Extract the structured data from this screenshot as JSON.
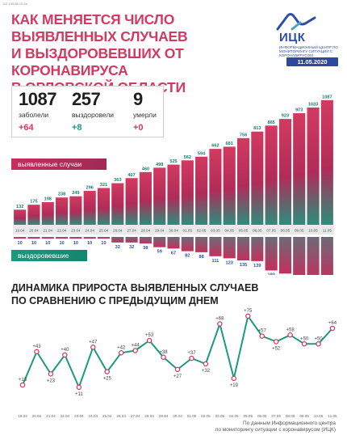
{
  "header": {
    "tiny_text": "112 149.88.12.2a",
    "title_lines": [
      "КАК МЕНЯЕТСЯ ЧИСЛО ВЫЯВЛЕННЫХ СЛУЧАЕВ",
      "И ВЫЗДОРОВЕВШИХ ОТ КОРОНАВИРУСА",
      "В ОРЛОВСКОЙ ОБЛАСТИ"
    ],
    "logo_name": "ИЦК",
    "logo_sub": "ИНФОРМАЦИОННЫЙ ЦЕНТР ПО МОНИТОРИНГУ СИТУАЦИИ С КОРОНАВИРУСОМ",
    "date": "11.05.2020"
  },
  "stats": [
    {
      "num": "1087",
      "label": "заболели",
      "delta": "+64",
      "tone": "red"
    },
    {
      "num": "257",
      "label": "выздоровели",
      "delta": "+8",
      "tone": "green"
    },
    {
      "num": "9",
      "label": "умерли",
      "delta": "+0",
      "tone": "red"
    }
  ],
  "chart_data": [
    {
      "type": "bar",
      "categories": [
        "19.04",
        "20.04",
        "21.04",
        "22.04",
        "23.04",
        "24.04",
        "25.04",
        "26.04",
        "27.04",
        "28.04",
        "29.04",
        "30.04",
        "01.05",
        "02.05",
        "03.05",
        "04.05",
        "05.05",
        "06.05",
        "07.05",
        "08.05",
        "09.05",
        "10.05",
        "11.05"
      ],
      "series": [
        {
          "name": "выявленные случаи",
          "values": [
            132,
            175,
            198,
            238,
            249,
            296,
            321,
            363,
            407,
            460,
            498,
            525,
            562,
            594,
            662,
            681,
            756,
            813,
            865,
            923,
            973,
            1023,
            1087
          ],
          "color": "#c52f5c"
        },
        {
          "name": "выздоровевшие",
          "values": [
            10,
            10,
            10,
            10,
            10,
            10,
            10,
            32,
            32,
            38,
            59,
            67,
            82,
            88,
            111,
            123,
            135,
            139,
            193,
            211,
            244,
            249,
            257
          ],
          "color": "#1a9a7e"
        }
      ],
      "labels": [
        "выявленные случаи",
        "выздоровевшие"
      ]
    },
    {
      "type": "line",
      "title": "ДИНАМИКА ПРИРОСТА ВЫЯВЛЕННЫХ СЛУЧАЕВ ПО СРАВНЕНИЮ С ПРЕДЫДУЩИМ ДНЕМ",
      "title_lines": [
        "ДИНАМИКА ПРИРОСТА ВЫЯВЛЕННЫХ СЛУЧАЕВ",
        "ПО СРАВНЕНИЮ С ПРЕДЫДУЩИМ ДНЕМ"
      ],
      "categories": [
        "19.04",
        "20.04",
        "21.04",
        "22.04",
        "23.04",
        "24.04",
        "25.04",
        "26.04",
        "27.04",
        "28.04",
        "29.04",
        "30.04",
        "01.05",
        "02.05",
        "03.05",
        "04.05",
        "05.05",
        "06.05",
        "07.05",
        "08.05",
        "09.05",
        "10.05",
        "11.05"
      ],
      "values": [
        13,
        43,
        23,
        40,
        11,
        47,
        25,
        42,
        44,
        53,
        38,
        27,
        37,
        32,
        68,
        19,
        75,
        57,
        52,
        58,
        50,
        50,
        64
      ],
      "value_labels": [
        "+13",
        "+43",
        "+23",
        "+40",
        "+11",
        "+47",
        "+25",
        "+42",
        "+44",
        "+53",
        "+38",
        "+27",
        "+37",
        "+32",
        "+68",
        "+19",
        "+75",
        "+57",
        "+52",
        "+58",
        "+50",
        "+50",
        "+64"
      ],
      "ylim": [
        0,
        80
      ],
      "color": "#1a9a7e"
    }
  ],
  "source_lines": [
    "По данным Информационного центра",
    "по мониторингу ситуации с коронавирусом (ИЦК)"
  ]
}
